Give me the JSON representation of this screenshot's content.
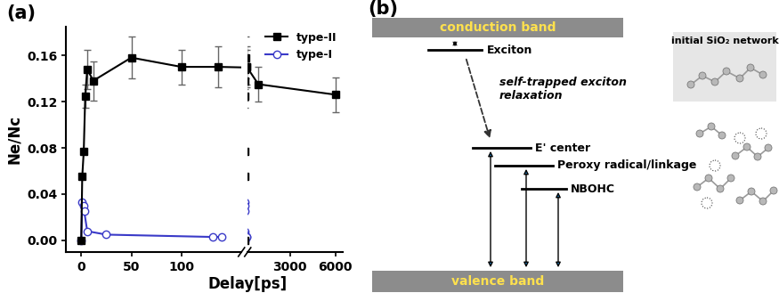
{
  "chart_data": {
    "type": "line",
    "title": "(a)",
    "xlabel": "Delay[ps]",
    "ylabel": "Ne/Nc",
    "xlim": [
      [
        -15,
        160
      ],
      [
        200,
        6500
      ]
    ],
    "xticks": [
      [
        0,
        50,
        100
      ],
      [
        3000,
        6000
      ]
    ],
    "ylim": [
      -0.01,
      0.185
    ],
    "yticks": [
      {
        "value": 0,
        "label": "0.00"
      },
      {
        "value": 0.04,
        "label": "0.04"
      },
      {
        "value": 0.08,
        "label": "0.08"
      },
      {
        "value": 0.12,
        "label": "0.12"
      },
      {
        "value": 0.16,
        "label": "0.16"
      }
    ],
    "legend": "upper right",
    "series": [
      {
        "name": "type-II",
        "color": "#000000",
        "marker": "square",
        "line_style": "solid",
        "x": [
          0,
          1,
          2.5,
          4,
          6,
          12,
          50,
          100,
          137,
          900,
          6000
        ],
        "values": [
          0.0,
          0.055,
          0.077,
          0.125,
          0.148,
          0.138,
          0.158,
          0.15,
          0.15,
          0.135,
          0.126
        ],
        "errors": [
          0.0,
          0.0,
          0.0,
          0.01,
          0.017,
          0.017,
          0.018,
          0.015,
          0.018,
          0.015,
          0.015
        ]
      },
      {
        "name": "type-I",
        "color": "#3a3ac8",
        "marker": "open_circle",
        "line_style": "solid",
        "x": [
          0,
          1,
          2,
          3,
          6,
          25,
          131,
          140
        ],
        "values": [
          0.0,
          0.033,
          0.03,
          0.025,
          0.008,
          0.005,
          0.003,
          0.003
        ]
      }
    ]
  },
  "diagram": {
    "panel_label": "(b)",
    "bands": {
      "top": "conduction band",
      "bottom": "valence band"
    },
    "levels": [
      "Exciton",
      "E' center",
      "Peroxy radical/linkage",
      "NBOHC"
    ],
    "process": "self-trapped exciton relaxation",
    "inset": "initial SiO₂ network"
  }
}
